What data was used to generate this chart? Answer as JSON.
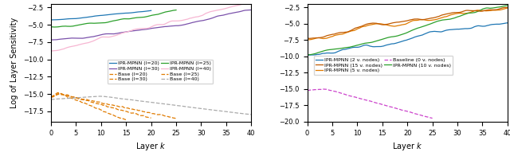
{
  "left": {
    "xlabel": "Layer $k$",
    "ylabel": "Log of Layer Sensitivity",
    "xlim": [
      0,
      40
    ],
    "ylim": [
      -19,
      -2
    ],
    "yticks": [
      -17.5,
      -15.0,
      -12.5,
      -10.0,
      -7.5,
      -5.0,
      -2.5
    ],
    "xticks": [
      0,
      5,
      10,
      15,
      20,
      25,
      30,
      35,
      40
    ],
    "c20": "#1f77b4",
    "c25": "#2ca02c",
    "c30": "#7b52ab",
    "c40": "#f7b6d2",
    "cb_orange": "#e07b00",
    "cb_gray": "#aaaaaa"
  },
  "right": {
    "xlabel": "Layer $k$",
    "xlim": [
      0,
      40
    ],
    "ylim": [
      -20,
      -2
    ],
    "yticks": [
      -20.0,
      -17.5,
      -15.0,
      -12.5,
      -10.0,
      -7.5,
      -5.0,
      -2.5
    ],
    "xticks": [
      0,
      5,
      10,
      15,
      20,
      25,
      30,
      35,
      40
    ],
    "ci2": "#1f77b4",
    "ci5": "#e07b00",
    "ci10": "#2ca02c",
    "ci15": "#c05a00",
    "cb": "#cc44cc"
  }
}
